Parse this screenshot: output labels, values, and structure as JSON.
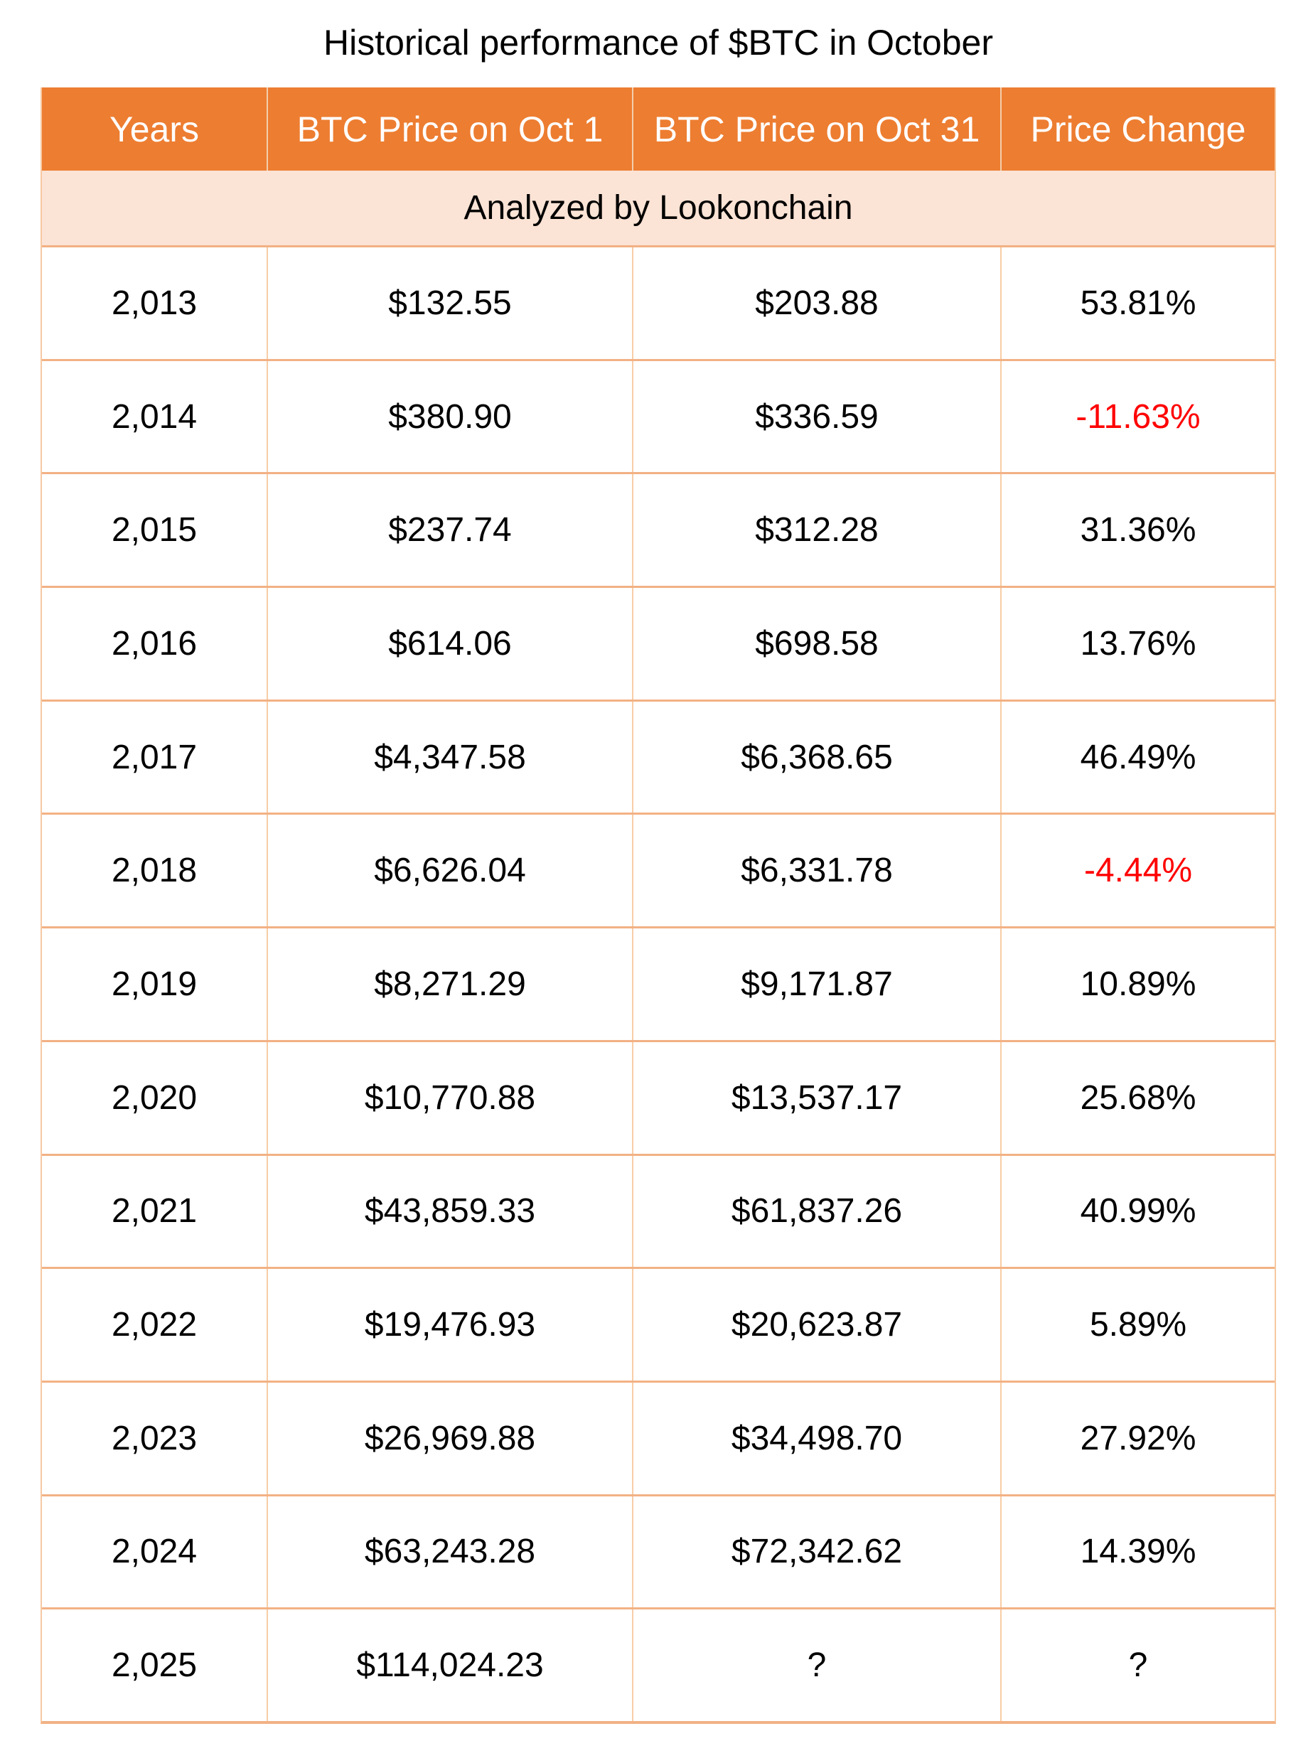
{
  "page": {
    "title": "Historical performance of $BTC in October"
  },
  "colors": {
    "header_bg": "#ED7D31",
    "header_text": "#FFFFFF",
    "subheader_bg": "#FBE3D5",
    "row_border": "#F2B184",
    "column_border": "#F8CDA6",
    "negative": "#FF0000",
    "body_text": "#000000"
  },
  "table": {
    "columns": [
      "Years",
      "BTC Price on Oct 1",
      "BTC Price on Oct 31",
      "Price Change"
    ],
    "subheader": "Analyzed by Lookonchain",
    "rows": [
      {
        "year": "2,013",
        "oct1": "$132.55",
        "oct31": "$203.88",
        "change": "53.81%"
      },
      {
        "year": "2,014",
        "oct1": "$380.90",
        "oct31": "$336.59",
        "change": "-11.63%"
      },
      {
        "year": "2,015",
        "oct1": "$237.74",
        "oct31": "$312.28",
        "change": "31.36%"
      },
      {
        "year": "2,016",
        "oct1": "$614.06",
        "oct31": "$698.58",
        "change": "13.76%"
      },
      {
        "year": "2,017",
        "oct1": "$4,347.58",
        "oct31": "$6,368.65",
        "change": "46.49%"
      },
      {
        "year": "2,018",
        "oct1": "$6,626.04",
        "oct31": "$6,331.78",
        "change": "-4.44%"
      },
      {
        "year": "2,019",
        "oct1": "$8,271.29",
        "oct31": "$9,171.87",
        "change": "10.89%"
      },
      {
        "year": "2,020",
        "oct1": "$10,770.88",
        "oct31": "$13,537.17",
        "change": "25.68%"
      },
      {
        "year": "2,021",
        "oct1": "$43,859.33",
        "oct31": "$61,837.26",
        "change": "40.99%"
      },
      {
        "year": "2,022",
        "oct1": "$19,476.93",
        "oct31": "$20,623.87",
        "change": "5.89%"
      },
      {
        "year": "2,023",
        "oct1": "$26,969.88",
        "oct31": "$34,498.70",
        "change": "27.92%"
      },
      {
        "year": "2,024",
        "oct1": "$63,243.28",
        "oct31": "$72,342.62",
        "change": "14.39%"
      },
      {
        "year": "2,025",
        "oct1": "$114,024.23",
        "oct31": "?",
        "change": "?"
      }
    ]
  },
  "chart_data": {
    "type": "table",
    "title": "Historical performance of $BTC in October",
    "annotation": "Analyzed by Lookonchain",
    "columns": [
      "Years",
      "BTC Price on Oct 1",
      "BTC Price on Oct 31",
      "Price Change"
    ],
    "years": [
      2013,
      2014,
      2015,
      2016,
      2017,
      2018,
      2019,
      2020,
      2021,
      2022,
      2023,
      2024,
      2025
    ],
    "btc_price_oct1": [
      132.55,
      380.9,
      237.74,
      614.06,
      4347.58,
      6626.04,
      8271.29,
      10770.88,
      43859.33,
      19476.93,
      26969.88,
      63243.28,
      114024.23
    ],
    "btc_price_oct31": [
      203.88,
      336.59,
      312.28,
      698.58,
      6368.65,
      6331.78,
      9171.87,
      13537.17,
      61837.26,
      20623.87,
      34498.7,
      72342.62,
      null
    ],
    "price_change_pct": [
      53.81,
      -11.63,
      31.36,
      13.76,
      46.49,
      -4.44,
      10.89,
      25.68,
      40.99,
      5.89,
      27.92,
      14.39,
      null
    ]
  }
}
